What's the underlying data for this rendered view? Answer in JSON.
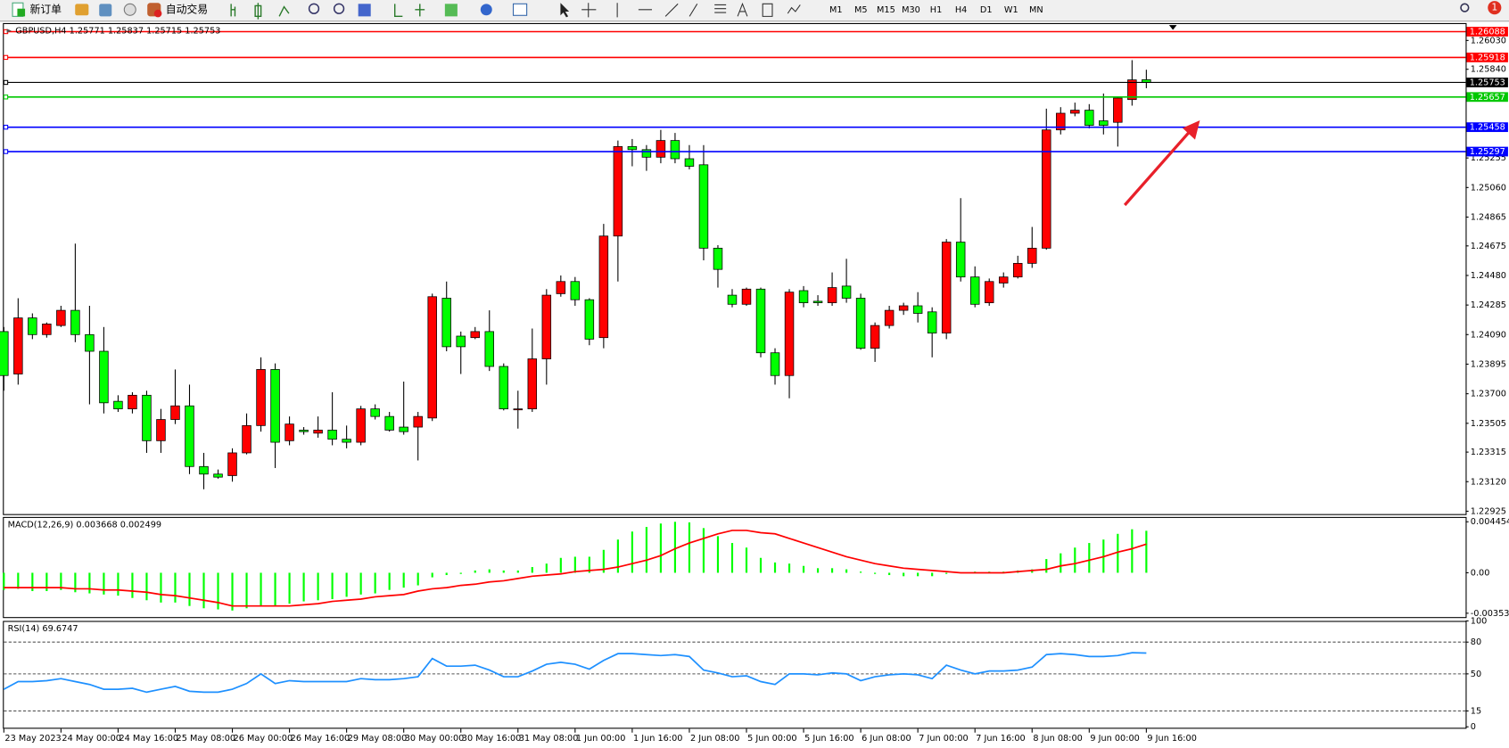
{
  "toolbar": {
    "new_order": "新订单",
    "auto_trading": "自动交易",
    "timeframes": [
      "M1",
      "M5",
      "M15",
      "M30",
      "H1",
      "H4",
      "D1",
      "W1",
      "MN"
    ],
    "alerts": "1"
  },
  "chart_data": [
    {
      "type": "candlestick",
      "title": "GBPUSD,H4  1.25771 1.25837 1.25715 1.25753",
      "categories": [
        "23 May 2023",
        null,
        null,
        null,
        "24 May 00:00",
        null,
        null,
        null,
        "24 May 16:00",
        null,
        null,
        null,
        "25 May 08:00",
        null,
        null,
        null,
        "26 May 00:00",
        null,
        null,
        null,
        "26 May 16:00",
        null,
        null,
        null,
        "29 May 08:00",
        null,
        null,
        null,
        "30 May 00:00",
        null,
        null,
        null,
        "30 May 16:00",
        null,
        null,
        null,
        "31 May 08:00",
        null,
        null,
        null,
        "1 Jun 00:00",
        null,
        null,
        null,
        "1 Jun 16:00",
        null,
        null,
        null,
        "2 Jun 08:00",
        null,
        null,
        null,
        "5 Jun 00:00",
        null,
        null,
        null,
        "5 Jun 16:00",
        null,
        null,
        null,
        "6 Jun 08:00",
        null,
        null,
        null,
        "7 Jun 00:00",
        null,
        null,
        null,
        "7 Jun 16:00",
        null,
        null,
        null,
        "8 Jun 08:00",
        null,
        null,
        null,
        "9 Jun 00:00",
        null,
        null,
        null,
        "9 Jun 16:00"
      ],
      "open": [
        1.2411,
        1.2383,
        1.242,
        1.2409,
        1.2415,
        1.2425,
        1.2409,
        1.2398,
        1.2365,
        1.236,
        1.2369,
        1.2339,
        1.2353,
        1.2362,
        1.2322,
        1.2317,
        1.2316,
        1.2331,
        1.2349,
        1.2386,
        1.2339,
        1.2346,
        1.2344,
        1.2346,
        1.234,
        1.2338,
        1.236,
        1.2355,
        1.2348,
        1.2348,
        1.2354,
        1.2433,
        1.2408,
        1.2407,
        1.2411,
        1.2388,
        1.236,
        1.236,
        1.2393,
        1.2436,
        1.2444,
        1.2432,
        1.2407,
        1.2474,
        1.2533,
        1.2531,
        1.2526,
        1.2537,
        1.2525,
        1.2521,
        1.2466,
        1.2435,
        1.2429,
        1.2439,
        1.2397,
        1.2382,
        1.2438,
        1.2431,
        1.243,
        1.2441,
        1.2433,
        1.24,
        1.2415,
        1.2425,
        1.2428,
        1.2424,
        1.241,
        1.247,
        1.2447,
        1.243,
        1.2443,
        1.2447,
        1.2456,
        1.2466,
        1.2544,
        1.2555,
        1.2557,
        1.255,
        1.2549,
        1.2564,
        1.25771
      ],
      "high": [
        1.2414,
        1.2433,
        1.2423,
        1.2417,
        1.2428,
        1.2469,
        1.2428,
        1.2414,
        1.2369,
        1.2371,
        1.2372,
        1.236,
        1.2386,
        1.2376,
        1.2331,
        1.232,
        1.2334,
        1.2357,
        1.2394,
        1.239,
        1.2355,
        1.2348,
        1.2355,
        1.2371,
        1.2349,
        1.2362,
        1.2363,
        1.2358,
        1.2378,
        1.2358,
        1.2436,
        1.2444,
        1.2411,
        1.2414,
        1.2425,
        1.239,
        1.2372,
        1.2413,
        1.2439,
        1.2448,
        1.2447,
        1.2433,
        1.2482,
        1.2537,
        1.2538,
        1.2534,
        1.2544,
        1.2542,
        1.2534,
        1.2534,
        1.2468,
        1.2439,
        1.244,
        1.244,
        1.24,
        1.2439,
        1.2441,
        1.2435,
        1.245,
        1.2459,
        1.2436,
        1.2417,
        1.2428,
        1.243,
        1.2437,
        1.2427,
        1.2472,
        1.2499,
        1.2454,
        1.2446,
        1.245,
        1.2461,
        1.248,
        1.2558,
        1.2559,
        1.2562,
        1.2561,
        1.2568,
        1.2566,
        1.259,
        1.25837
      ],
      "low": [
        1.2372,
        1.2376,
        1.2406,
        1.2407,
        1.2414,
        1.2404,
        1.2363,
        1.2357,
        1.2358,
        1.2357,
        1.2331,
        1.2331,
        1.235,
        1.2317,
        1.2307,
        1.2314,
        1.2312,
        1.233,
        1.2345,
        1.2321,
        1.2336,
        1.2343,
        1.2341,
        1.2336,
        1.2334,
        1.2336,
        1.2353,
        1.2345,
        1.2343,
        1.2326,
        1.2352,
        1.2398,
        1.2383,
        1.2406,
        1.2385,
        1.2359,
        1.2347,
        1.2358,
        1.2376,
        1.2434,
        1.2428,
        1.2402,
        1.24,
        1.2444,
        1.252,
        1.2517,
        1.2522,
        1.2522,
        1.2518,
        1.2458,
        1.244,
        1.2427,
        1.2428,
        1.2394,
        1.2376,
        1.2367,
        1.2427,
        1.2428,
        1.2428,
        1.243,
        1.2399,
        1.2391,
        1.2413,
        1.2422,
        1.2417,
        1.2394,
        1.2406,
        1.2444,
        1.2427,
        1.2428,
        1.244,
        1.2446,
        1.2453,
        1.2465,
        1.2541,
        1.2553,
        1.2545,
        1.2541,
        1.2533,
        1.256,
        1.25715
      ],
      "close": [
        1.2382,
        1.242,
        1.2409,
        1.2416,
        1.2425,
        1.2409,
        1.2398,
        1.2364,
        1.236,
        1.2369,
        1.2339,
        1.2353,
        1.2362,
        1.2322,
        1.2317,
        1.2315,
        1.2331,
        1.2349,
        1.2386,
        1.2338,
        1.235,
        1.2345,
        1.2346,
        1.234,
        1.2338,
        1.236,
        1.2355,
        1.2346,
        1.2345,
        1.2355,
        1.2434,
        1.2401,
        1.2401,
        1.2411,
        1.2388,
        1.236,
        1.236,
        1.2393,
        1.2435,
        1.2444,
        1.2432,
        1.2406,
        1.2474,
        1.2533,
        1.2531,
        1.2526,
        1.2537,
        1.2525,
        1.252,
        1.2466,
        1.2452,
        1.2429,
        1.2439,
        1.2397,
        1.2382,
        1.2437,
        1.243,
        1.243,
        1.244,
        1.2433,
        1.24,
        1.2415,
        1.2425,
        1.2428,
        1.2423,
        1.241,
        1.247,
        1.2447,
        1.2429,
        1.2444,
        1.2447,
        1.2456,
        1.2466,
        1.2544,
        1.2555,
        1.2557,
        1.2547,
        1.2547,
        1.2565,
        1.2577,
        1.25753
      ],
      "colors": {
        "up": "#ff0000",
        "down": "#00ff00"
      },
      "ylim": [
        1.229,
        1.26138
      ],
      "yticks": [
        {
          "value": 1.2603,
          "label": "1.26030"
        },
        {
          "value": 1.2584,
          "label": "1.25840"
        },
        {
          "value": 1.25255,
          "label": "1.25255"
        },
        {
          "value": 1.2506,
          "label": "1.25060"
        },
        {
          "value": 1.24865,
          "label": "1.24865"
        },
        {
          "value": 1.24675,
          "label": "1.24675"
        },
        {
          "value": 1.2448,
          "label": "1.24480"
        },
        {
          "value": 1.24285,
          "label": "1.24285"
        },
        {
          "value": 1.2409,
          "label": "1.24090"
        },
        {
          "value": 1.23895,
          "label": "1.23895"
        },
        {
          "value": 1.237,
          "label": "1.23700"
        },
        {
          "value": 1.23505,
          "label": "1.23505"
        },
        {
          "value": 1.23315,
          "label": "1.23315"
        },
        {
          "value": 1.2312,
          "label": "1.23120"
        },
        {
          "value": 1.22925,
          "label": "1.22925"
        }
      ],
      "hlines": [
        {
          "value": 1.26088,
          "color": "#ff0000"
        },
        {
          "value": 1.25918,
          "color": "#ff0000"
        },
        {
          "value": 1.25753,
          "color": "#000000"
        },
        {
          "value": 1.25657,
          "color": "#00c800"
        },
        {
          "value": 1.25458,
          "color": "#0000ff"
        },
        {
          "value": 1.25297,
          "color": "#0000ff"
        }
      ]
    },
    {
      "type": "macd",
      "title": "MACD(12,26,9) 0.003668 0.002499",
      "series": [
        {
          "type": "bar",
          "color": "#00ff00",
          "values": [
            -0.0015,
            -0.0014,
            -0.0016,
            -0.0016,
            -0.0015,
            -0.0017,
            -0.0018,
            -0.0019,
            -0.002,
            -0.0022,
            -0.0024,
            -0.0026,
            -0.0026,
            -0.0029,
            -0.0031,
            -0.0032,
            -0.0033,
            -0.0031,
            -0.0029,
            -0.0029,
            -0.0027,
            -0.0025,
            -0.0024,
            -0.0023,
            -0.0021,
            -0.0019,
            -0.0018,
            -0.0015,
            -0.0013,
            -0.0011,
            -0.0004,
            -0.0002,
            -0.0001,
            0.0002,
            0.0003,
            0.0002,
            0.0002,
            0.0005,
            0.0008,
            0.0013,
            0.0014,
            0.0014,
            0.002,
            0.0029,
            0.0036,
            0.004,
            0.0043,
            0.00445,
            0.0044,
            0.0039,
            0.0032,
            0.0026,
            0.0022,
            0.0013,
            0.0009,
            0.0008,
            0.0006,
            0.0004,
            0.0004,
            0.0003,
            0.0001,
            -0.0001,
            -0.0002,
            -0.0003,
            -0.0003,
            -0.0003,
            -0.0001,
            0,
            0.0001,
            0.0001,
            0.0001,
            0.0002,
            0.0003,
            0.0012,
            0.0017,
            0.0022,
            0.0026,
            0.0029,
            0.0034,
            0.0038,
            0.003668
          ]
        },
        {
          "type": "line",
          "color": "#ff0000",
          "values": [
            -0.0013,
            -0.0013,
            -0.0013,
            -0.0013,
            -0.0013,
            -0.0014,
            -0.0014,
            -0.0015,
            -0.0015,
            -0.0016,
            -0.0017,
            -0.0019,
            -0.002,
            -0.0022,
            -0.0024,
            -0.0026,
            -0.0029,
            -0.0029,
            -0.0029,
            -0.0029,
            -0.0029,
            -0.0028,
            -0.0027,
            -0.0025,
            -0.0024,
            -0.0023,
            -0.0021,
            -0.002,
            -0.0019,
            -0.0016,
            -0.0014,
            -0.0013,
            -0.0011,
            -0.001,
            -0.0008,
            -0.0007,
            -0.0005,
            -0.0003,
            -0.0002,
            -0.0001,
            0.0001,
            0.0002,
            0.0003,
            0.0005,
            0.0008,
            0.0011,
            0.0015,
            0.0021,
            0.0026,
            0.003,
            0.0034,
            0.0037,
            0.0037,
            0.0035,
            0.0034,
            0.003,
            0.0026,
            0.0022,
            0.0018,
            0.0014,
            0.0011,
            0.0008,
            0.0006,
            0.0004,
            0.0003,
            0.0002,
            0.0001,
            0,
            0,
            0,
            0,
            0.0001,
            0.0002,
            0.0003,
            0.0006,
            0.0008,
            0.0011,
            0.0014,
            0.0018,
            0.0021,
            0.002499
          ]
        }
      ],
      "ylim": [
        -0.003533,
        0.004454
      ],
      "yticks": [
        0.004454,
        {
          "value": 0,
          "label": "0.00"
        },
        -0.003533
      ]
    },
    {
      "type": "line",
      "title": "RSI(14) 69.6747",
      "color": "#1e90ff",
      "values": [
        35.5,
        42.7,
        42.7,
        43.6,
        45.5,
        42.7,
        40,
        35.5,
        35.5,
        36.4,
        32.7,
        35.5,
        38.2,
        33.6,
        32.7,
        32.7,
        35.5,
        40.9,
        50,
        40.9,
        43.6,
        42.7,
        42.7,
        42.7,
        42.7,
        45.5,
        44.5,
        44.5,
        45.5,
        47.3,
        64.5,
        57.3,
        57.3,
        58.2,
        53.6,
        47.3,
        47.3,
        52.7,
        59.1,
        60.9,
        59.1,
        54.5,
        62.7,
        69.1,
        69.1,
        68.2,
        67.3,
        68.2,
        66.4,
        53.6,
        50.9,
        47.3,
        48.2,
        42.7,
        40,
        50,
        50,
        49.1,
        50.9,
        50,
        43.6,
        47.3,
        49.1,
        50,
        49.1,
        45.5,
        58.2,
        53.6,
        50,
        52.7,
        52.7,
        53.6,
        56.4,
        68.2,
        69.1,
        68.2,
        66.4,
        66.4,
        67.3,
        70,
        69.6747
      ],
      "ylim": [
        0,
        100
      ],
      "yticks": [
        100,
        80,
        50,
        15,
        0
      ]
    }
  ]
}
